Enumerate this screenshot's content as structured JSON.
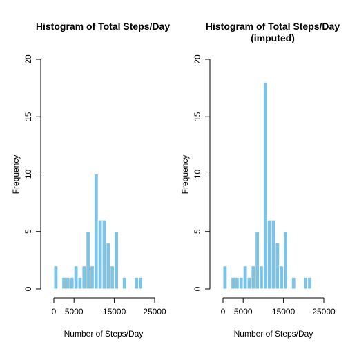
{
  "chart_data": [
    {
      "type": "bar",
      "title_lines": [
        "Histogram of Total Steps/Day"
      ],
      "xlabel": "Number of Steps/Day",
      "ylabel": "Frequency",
      "xlim": [
        0,
        25000
      ],
      "ylim": [
        0,
        20
      ],
      "x_ticks": [
        0,
        5000,
        15000,
        25000
      ],
      "y_ticks": [
        0,
        5,
        10,
        15,
        20
      ],
      "bin_width": 1000,
      "bins_start": [
        0,
        1000,
        2000,
        3000,
        4000,
        5000,
        6000,
        7000,
        8000,
        9000,
        10000,
        11000,
        12000,
        13000,
        14000,
        15000,
        16000,
        17000,
        18000,
        19000,
        20000,
        21000
      ],
      "values": [
        2,
        0,
        1,
        1,
        1,
        2,
        1,
        2,
        5,
        2,
        10,
        6,
        6,
        4,
        2,
        5,
        0,
        1,
        0,
        0,
        1,
        1
      ],
      "bar_color": "#7ec3e6"
    },
    {
      "type": "bar",
      "title_lines": [
        "Histogram of Total Steps/Day",
        "(imputed)"
      ],
      "xlabel": "Number of Steps/Day",
      "ylabel": "Frequency",
      "xlim": [
        0,
        25000
      ],
      "ylim": [
        0,
        20
      ],
      "x_ticks": [
        0,
        5000,
        15000,
        25000
      ],
      "y_ticks": [
        0,
        5,
        10,
        15,
        20
      ],
      "bin_width": 1000,
      "bins_start": [
        0,
        1000,
        2000,
        3000,
        4000,
        5000,
        6000,
        7000,
        8000,
        9000,
        10000,
        11000,
        12000,
        13000,
        14000,
        15000,
        16000,
        17000,
        18000,
        19000,
        20000,
        21000
      ],
      "values": [
        2,
        0,
        1,
        1,
        1,
        2,
        1,
        2,
        5,
        2,
        18,
        6,
        6,
        4,
        2,
        5,
        0,
        1,
        0,
        0,
        1,
        1
      ],
      "bar_color": "#7ec3e6"
    }
  ]
}
